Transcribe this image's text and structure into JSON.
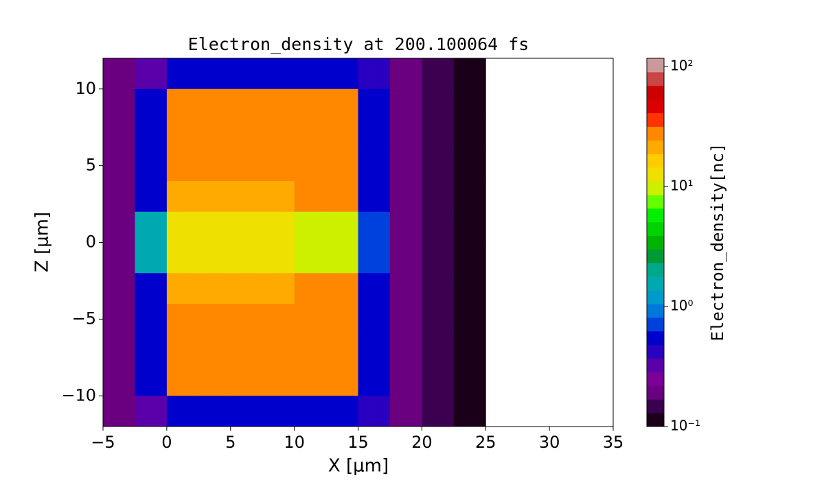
{
  "chart_data": {
    "type": "heatmap",
    "title": "Electron_density at 200.100064 fs",
    "x_label": "X [μm]",
    "y_label": "Z [μm]",
    "colorbar_label": "Electron_density[nc]",
    "x": [
      -5,
      -2.5,
      0,
      2.5,
      5,
      7.5,
      10,
      12.5,
      15,
      17.5,
      20,
      22.5,
      25,
      27.5,
      30,
      32.5,
      35
    ],
    "y": [
      12,
      10,
      8,
      6,
      4,
      2,
      0,
      -2,
      -4,
      -6,
      -8,
      -10,
      -12
    ],
    "values": [
      [
        0.2,
        0.3,
        0.6,
        0.6,
        0.6,
        0.6,
        0.6,
        0.6,
        0.4,
        0.2,
        0.15,
        0.12,
        null,
        null,
        null,
        null
      ],
      [
        0.2,
        0.5,
        30,
        30,
        30,
        30,
        30,
        30,
        0.5,
        0.2,
        0.15,
        0.12,
        null,
        null,
        null,
        null
      ],
      [
        0.2,
        0.5,
        30,
        30,
        30,
        30,
        30,
        30,
        0.5,
        0.2,
        0.15,
        0.12,
        null,
        null,
        null,
        null
      ],
      [
        0.2,
        0.5,
        30,
        30,
        30,
        30,
        30,
        30,
        0.5,
        0.2,
        0.15,
        0.12,
        null,
        null,
        null,
        null
      ],
      [
        0.2,
        0.6,
        20,
        20,
        20,
        20,
        25,
        30,
        0.5,
        0.2,
        0.15,
        0.12,
        null,
        null,
        null,
        null
      ],
      [
        0.2,
        1.5,
        12,
        12,
        12,
        12,
        10,
        10,
        0.8,
        0.2,
        0.15,
        0.12,
        null,
        null,
        null,
        null
      ],
      [
        0.2,
        1.5,
        12,
        12,
        12,
        12,
        10,
        10,
        0.8,
        0.2,
        0.15,
        0.12,
        null,
        null,
        null,
        null
      ],
      [
        0.2,
        0.6,
        20,
        20,
        20,
        20,
        25,
        30,
        0.5,
        0.2,
        0.15,
        0.12,
        null,
        null,
        null,
        null
      ],
      [
        0.2,
        0.5,
        30,
        30,
        30,
        30,
        30,
        30,
        0.5,
        0.2,
        0.15,
        0.12,
        null,
        null,
        null,
        null
      ],
      [
        0.2,
        0.5,
        30,
        30,
        30,
        30,
        30,
        30,
        0.5,
        0.2,
        0.15,
        0.12,
        null,
        null,
        null,
        null
      ],
      [
        0.2,
        0.5,
        30,
        30,
        30,
        30,
        30,
        30,
        0.5,
        0.2,
        0.15,
        0.12,
        null,
        null,
        null,
        null
      ],
      [
        0.2,
        0.3,
        0.6,
        0.6,
        0.6,
        0.6,
        0.6,
        0.6,
        0.4,
        0.2,
        0.15,
        0.12,
        null,
        null,
        null,
        null
      ]
    ],
    "xlim": [
      -5,
      35
    ],
    "ylim": [
      -12,
      12
    ],
    "xticks": [
      {
        "value": -5,
        "label": "−5"
      },
      0,
      5,
      10,
      15,
      20,
      25,
      30,
      35
    ],
    "yticks": [
      {
        "value": -10,
        "label": "−10"
      },
      {
        "value": -5,
        "label": "−5"
      },
      0,
      5,
      10
    ],
    "clim": [
      0.1,
      117
    ],
    "color_scale": "log",
    "cticks": [
      {
        "value": 0.1,
        "label": "10⁻¹"
      },
      {
        "value": 1,
        "label": "10⁰"
      },
      {
        "value": 10,
        "label": "10¹"
      },
      {
        "value": 100,
        "label": "10²"
      }
    ],
    "colormap": [
      "#1a0018",
      "#3b0050",
      "#6a0080",
      "#7b0099",
      "#5a00aa",
      "#2a00c0",
      "#0000cc",
      "#0040dd",
      "#0077dd",
      "#0099cc",
      "#00a8b0",
      "#00a88a",
      "#009933",
      "#00b300",
      "#00d400",
      "#00f000",
      "#66ff00",
      "#ccf000",
      "#eee000",
      "#ffcc00",
      "#ffaa00",
      "#ff8800",
      "#ff3300",
      "#dd0000",
      "#cc0000",
      "#cc4444",
      "#cc9999"
    ]
  }
}
